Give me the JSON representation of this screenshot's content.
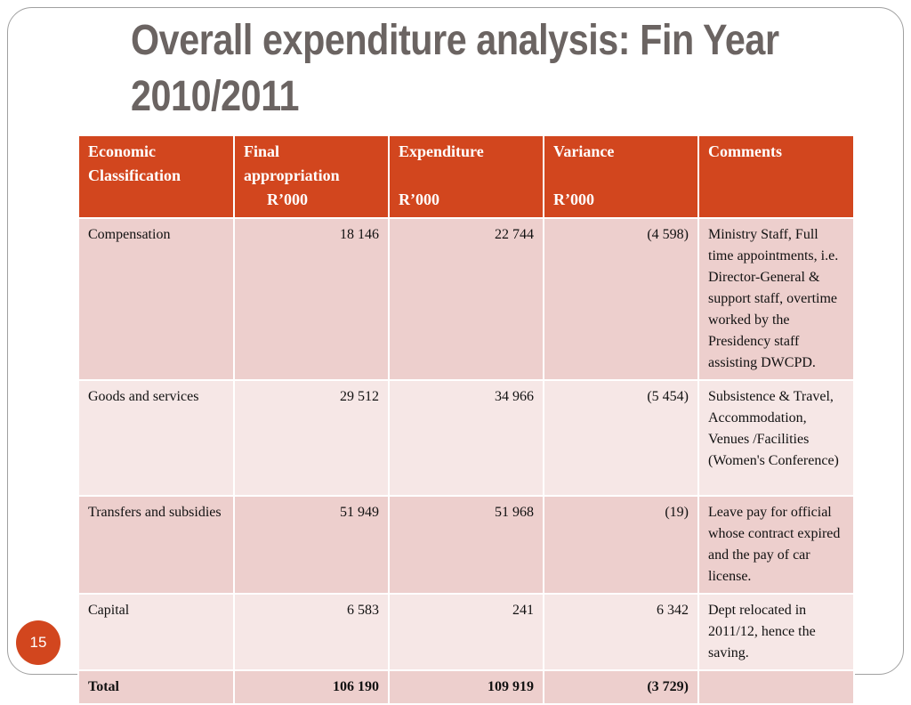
{
  "slide": {
    "title_line1": "Overall expenditure analysis: Fin Year",
    "title_line2": "2010/2011",
    "page_number": "15"
  },
  "colors": {
    "accent": "#d2461e",
    "row_dark": "#edcfcd",
    "row_light": "#f6e7e6",
    "title_text": "#6b6462"
  },
  "table": {
    "headers": {
      "economic_classification": [
        "Economic",
        "Classification"
      ],
      "final_appropriation": [
        "Final",
        "appropriation",
        "R’000"
      ],
      "expenditure": [
        "Expenditure",
        "",
        "R’000"
      ],
      "variance": [
        "Variance",
        "",
        "R’000"
      ],
      "comments": [
        "Comments"
      ]
    },
    "rows": [
      {
        "classification": "Compensation",
        "final_appropriation": "18 146",
        "expenditure": "22 744",
        "variance": "(4 598)",
        "comments": "Ministry Staff, Full time appointments, i.e. Director-General & support staff, overtime worked by the Presidency staff assisting DWCPD."
      },
      {
        "classification": "Goods and services",
        "final_appropriation": "29 512",
        "expenditure": "34 966",
        "variance": "(5 454)",
        "comments": "Subsistence & Travel, Accommodation, Venues /Facilities (Women's Conference)"
      },
      {
        "classification": "Transfers and subsidies",
        "final_appropriation": "51 949",
        "expenditure": "51 968",
        "variance": "(19)",
        "comments": "Leave pay for  official whose contract expired and the pay of car license."
      },
      {
        "classification": "Capital",
        "final_appropriation": "6 583",
        "expenditure": "241",
        "variance": "6 342",
        "comments": "Dept relocated in 2011/12, hence the saving."
      }
    ],
    "total": {
      "classification": "Total",
      "final_appropriation": "106 190",
      "expenditure": "109 919",
      "variance": "(3 729)",
      "comments": ""
    }
  }
}
